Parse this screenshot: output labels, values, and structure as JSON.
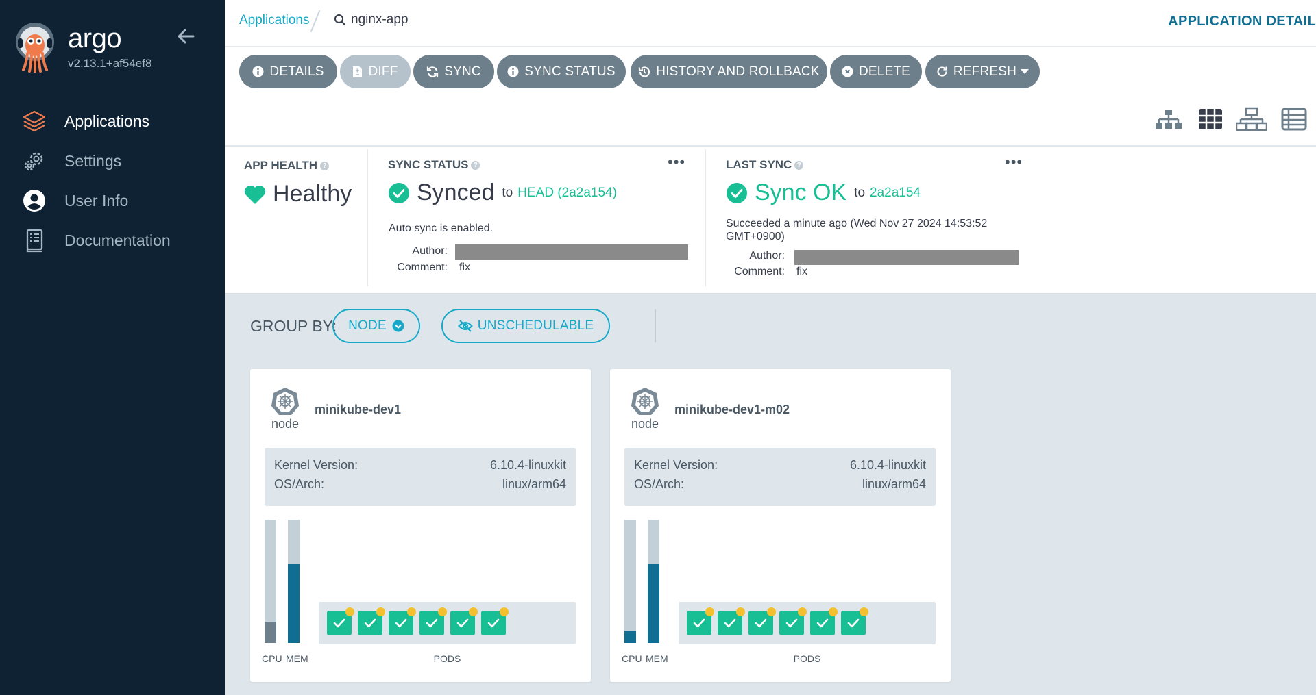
{
  "sidebar": {
    "brand": "argo",
    "version": "v2.13.1+af54ef8",
    "items": [
      {
        "label": "Applications",
        "icon": "layers-icon",
        "active": true
      },
      {
        "label": "Settings",
        "icon": "gears-icon",
        "active": false
      },
      {
        "label": "User Info",
        "icon": "user-circle-icon",
        "active": false
      },
      {
        "label": "Documentation",
        "icon": "book-icon",
        "active": false
      }
    ]
  },
  "header": {
    "breadcrumb_link": "Applications",
    "current_app": "nginx-app",
    "page_kind": "APPLICATION DETAIL"
  },
  "toolbar": {
    "buttons": [
      {
        "label": "DETAILS",
        "icon": "info-icon"
      },
      {
        "label": "DIFF",
        "icon": "file-diff-icon",
        "disabled": true
      },
      {
        "label": "SYNC",
        "icon": "sync-icon"
      },
      {
        "label": "SYNC STATUS",
        "icon": "info-icon"
      },
      {
        "label": "HISTORY AND ROLLBACK",
        "icon": "history-icon"
      },
      {
        "label": "DELETE",
        "icon": "times-circle-icon"
      },
      {
        "label": "REFRESH",
        "icon": "redo-icon"
      }
    ],
    "views": [
      "tree-view-icon",
      "pods-view-icon",
      "network-view-icon",
      "list-view-icon"
    ]
  },
  "status": {
    "app_health": {
      "title": "APP HEALTH",
      "value": "Healthy",
      "color": "#18be94"
    },
    "sync_status": {
      "title": "SYNC STATUS",
      "value": "Synced",
      "to": "to",
      "target": "HEAD (2a2a154)",
      "note": "Auto sync is enabled.",
      "author_label": "Author:",
      "comment_label": "Comment:",
      "comment": "fix"
    },
    "last_sync": {
      "title": "LAST SYNC",
      "value": "Sync OK",
      "to": "to",
      "target": "2a2a154",
      "note_line1": "Succeeded a minute ago (Wed Nov 27 2024 14:53:52",
      "note_line2": "GMT+0900)",
      "author_label": "Author:",
      "comment_label": "Comment:",
      "comment": "fix"
    }
  },
  "group_by": {
    "label": "GROUP BY:",
    "node_button": "NODE",
    "unschedulable_button": "UNSCHEDULABLE"
  },
  "nodes": [
    {
      "type": "node",
      "name": "minikube-dev1",
      "kernel_label": "Kernel Version:",
      "kernel": "6.10.4-linuxkit",
      "arch_label": "OS/Arch:",
      "arch": "linux/arm64",
      "cpu_fraction": 0.17,
      "mem_fraction": 0.64,
      "cpu_label": "CPU",
      "mem_label": "MEM",
      "pods_label": "PODS",
      "pod_count": 6
    },
    {
      "type": "node",
      "name": "minikube-dev1-m02",
      "kernel_label": "Kernel Version:",
      "kernel": "6.10.4-linuxkit",
      "arch_label": "OS/Arch:",
      "arch": "linux/arm64",
      "cpu_fraction": 0.1,
      "mem_fraction": 0.64,
      "cpu_label": "CPU",
      "mem_label": "MEM",
      "pods_label": "PODS",
      "pod_count": 6
    }
  ],
  "colors": {
    "sidebar_bg": "#0e2234",
    "accent_teal": "#18a8c7",
    "success_green": "#18be94",
    "button_gray": "#6d7f8b",
    "mem_blue": "#0f6e91",
    "pod_warning": "#f4c030"
  }
}
